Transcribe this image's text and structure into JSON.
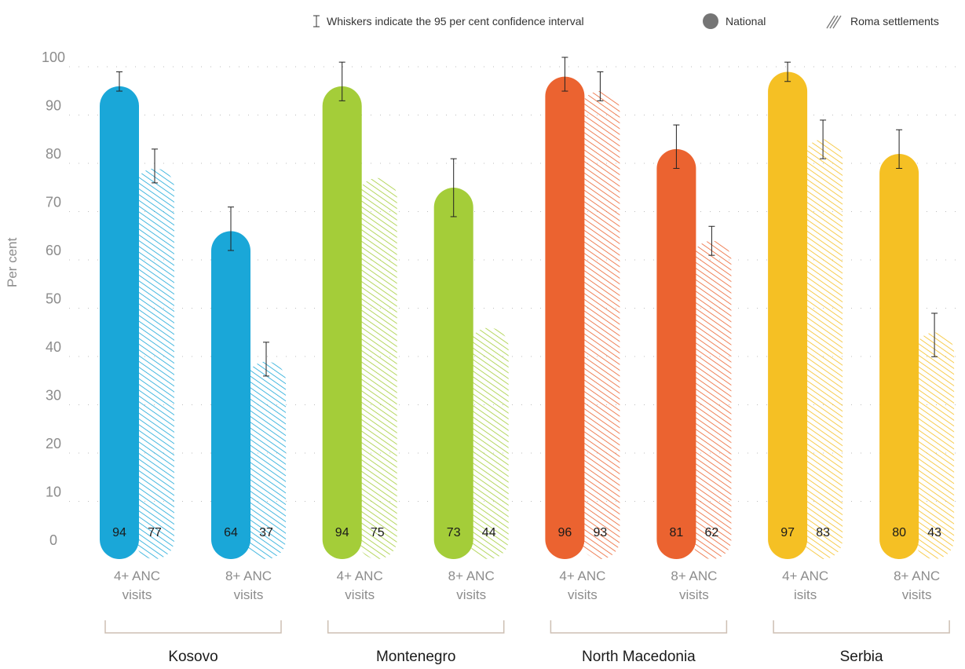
{
  "legend": {
    "whisker_text": "Whiskers indicate the 95 per cent confidence interval",
    "national": "National",
    "roma": "Roma settlements"
  },
  "chart_data": {
    "type": "bar",
    "ylabel": "Per cent",
    "ylim": [
      0,
      100
    ],
    "yticks": [
      0,
      10,
      20,
      30,
      40,
      50,
      60,
      70,
      80,
      90,
      100
    ],
    "grid": true,
    "legend_position": "top-right",
    "series_names": [
      "National",
      "Roma settlements"
    ],
    "groups": [
      {
        "name": "Kosovo",
        "color": "#1aa7d8",
        "bars": [
          {
            "label": [
              "4+ ANC",
              "visits"
            ],
            "national": 94,
            "roma": 77,
            "national_ci": [
              93,
              97
            ],
            "roma_ci": [
              74,
              81
            ]
          },
          {
            "label": [
              "8+ ANC",
              "visits"
            ],
            "national": 64,
            "roma": 37,
            "national_ci": [
              60,
              69
            ],
            "roma_ci": [
              34,
              41
            ]
          }
        ]
      },
      {
        "name": "Montenegro",
        "color": "#a4cd39",
        "bars": [
          {
            "label": [
              "4+ ANC",
              "visits"
            ],
            "national": 94,
            "roma": 75,
            "national_ci": [
              91,
              99
            ],
            "roma_ci": null
          },
          {
            "label": [
              "8+ ANC",
              "visits"
            ],
            "national": 73,
            "roma": 44,
            "national_ci": [
              67,
              79
            ],
            "roma_ci": null
          }
        ]
      },
      {
        "name": "North Macedonia",
        "color": "#eb6330",
        "bars": [
          {
            "label": [
              "4+ ANC",
              "visits"
            ],
            "national": 96,
            "roma": 93,
            "national_ci": [
              93,
              100
            ],
            "roma_ci": [
              91,
              97
            ]
          },
          {
            "label": [
              "8+ ANC",
              "visits"
            ],
            "national": 81,
            "roma": 62,
            "national_ci": [
              77,
              86
            ],
            "roma_ci": [
              59,
              65
            ]
          }
        ]
      },
      {
        "name": "Serbia",
        "color": "#f5c024",
        "bars": [
          {
            "label": [
              "4+ ANC",
              "isits"
            ],
            "national": 97,
            "roma": 83,
            "national_ci": [
              95,
              99
            ],
            "roma_ci": [
              79,
              87
            ]
          },
          {
            "label": [
              "8+ ANC",
              "visits"
            ],
            "national": 80,
            "roma": 43,
            "national_ci": [
              77,
              85
            ],
            "roma_ci": [
              38,
              47
            ]
          }
        ]
      }
    ]
  }
}
